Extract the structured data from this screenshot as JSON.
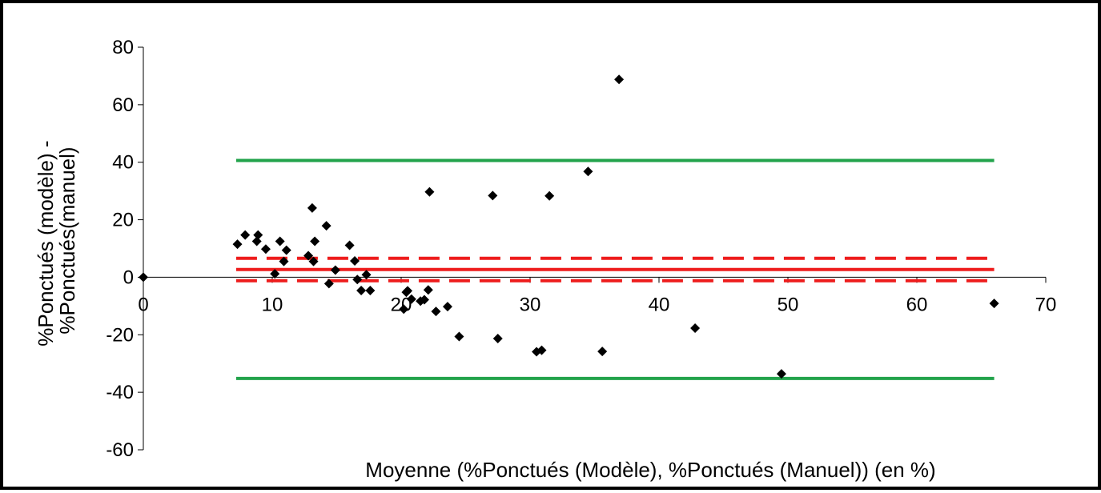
{
  "chart_data": {
    "type": "scatter",
    "title": "",
    "xlabel": "Moyenne (%Ponctués (Modèle), %Ponctués (Manuel)) (en %)",
    "ylabel": [
      "%Ponctués (modèle) -",
      "%Ponctués(manuel)"
    ],
    "xlim": [
      0,
      70
    ],
    "ylim": [
      -60,
      80
    ],
    "x_ticks": [
      0,
      10,
      20,
      30,
      40,
      50,
      60,
      70
    ],
    "y_ticks": [
      -60,
      -40,
      -20,
      0,
      20,
      40,
      60,
      80
    ],
    "grid": false,
    "legend": "none",
    "points": [
      [
        0,
        0
      ],
      [
        7.3,
        11.5
      ],
      [
        7.9,
        14.7
      ],
      [
        8.8,
        12.5
      ],
      [
        8.9,
        14.7
      ],
      [
        9.5,
        9.8
      ],
      [
        10.2,
        1.2
      ],
      [
        10.6,
        12.5
      ],
      [
        10.9,
        5.5
      ],
      [
        11.1,
        9.4
      ],
      [
        12.8,
        7.5
      ],
      [
        13.1,
        24.1
      ],
      [
        13.2,
        5.5
      ],
      [
        13.3,
        12.5
      ],
      [
        14.2,
        17.9
      ],
      [
        14.4,
        -2.2
      ],
      [
        14.9,
        2.5
      ],
      [
        16.0,
        11.1
      ],
      [
        16.4,
        5.7
      ],
      [
        16.6,
        -0.8
      ],
      [
        16.9,
        -4.6
      ],
      [
        17.3,
        0.9
      ],
      [
        17.6,
        -4.6
      ],
      [
        20.2,
        -11.1
      ],
      [
        20.4,
        -5.2
      ],
      [
        20.5,
        -4.7
      ],
      [
        20.8,
        -7.6
      ],
      [
        21.5,
        -8.3
      ],
      [
        21.8,
        -7.8
      ],
      [
        22.1,
        -4.4
      ],
      [
        22.2,
        29.7
      ],
      [
        22.7,
        -11.9
      ],
      [
        23.6,
        -10.2
      ],
      [
        24.5,
        -20.6
      ],
      [
        27.1,
        28.4
      ],
      [
        27.5,
        -21.3
      ],
      [
        30.5,
        -25.9
      ],
      [
        30.9,
        -25.4
      ],
      [
        31.5,
        28.3
      ],
      [
        34.5,
        36.8
      ],
      [
        35.6,
        -25.8
      ],
      [
        36.9,
        68.8
      ],
      [
        42.8,
        -17.7
      ],
      [
        49.5,
        -33.6
      ],
      [
        66.0,
        -9.1
      ]
    ],
    "lines": [
      {
        "label": "",
        "y": 40.6,
        "style": "solid",
        "color": "#22a34b",
        "x": [
          7.2,
          66.0
        ]
      },
      {
        "label": "",
        "y": -35.2,
        "style": "solid",
        "color": "#22a34b",
        "x": [
          7.2,
          66.0
        ]
      },
      {
        "label": "",
        "y": 2.7,
        "style": "solid",
        "color": "#ee1c1c",
        "x": [
          7.2,
          66.0
        ]
      },
      {
        "label": "",
        "y": 6.6,
        "style": "dashed",
        "color": "#ee1c1c",
        "x": [
          7.2,
          66.0
        ]
      },
      {
        "label": "",
        "y": -1.2,
        "style": "dashed",
        "color": "#ee1c1c",
        "x": [
          7.2,
          66.0
        ]
      }
    ]
  }
}
